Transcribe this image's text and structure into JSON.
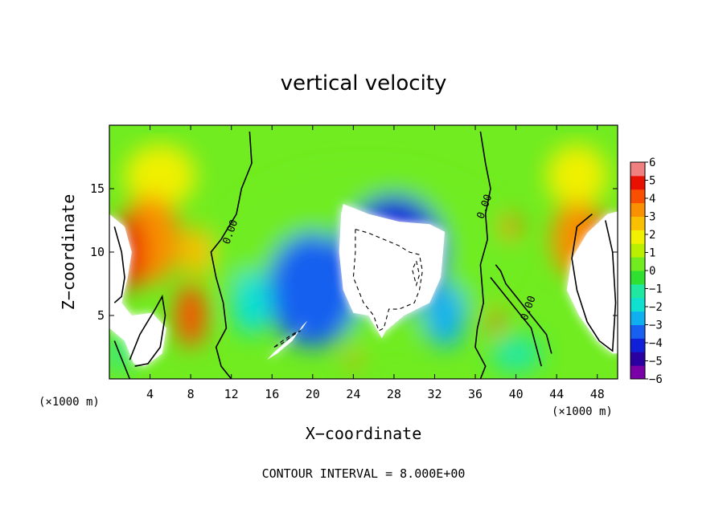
{
  "chart_data": {
    "type": "heatmap",
    "title": "vertical velocity",
    "xlabel": "X−coordinate",
    "ylabel": "Z−coordinate",
    "x_units": "(×1000 m)",
    "y_units": "(×1000 m)",
    "xlim": [
      0,
      50
    ],
    "ylim": [
      0,
      20
    ],
    "x_ticks": [
      "4",
      "8",
      "12",
      "16",
      "20",
      "24",
      "28",
      "32",
      "36",
      "40",
      "44",
      "48"
    ],
    "y_ticks": [
      "5",
      "10",
      "15"
    ],
    "contour_label": "0.00",
    "footer": "CONTOUR INTERVAL = 8.000E+00",
    "colorbar": {
      "range": [
        -6,
        6
      ],
      "labels": [
        "6",
        "5",
        "4",
        "3",
        "2",
        "1",
        "0",
        "−1",
        "−2",
        "−3",
        "−4",
        "−5",
        "−6"
      ],
      "colors": [
        "#7a00a8",
        "#2a00a0",
        "#1020d8",
        "#1860f0",
        "#10b0f0",
        "#10e0d0",
        "#20e8a0",
        "#30e030",
        "#70ec20",
        "#b8f000",
        "#f0f000",
        "#f8c000",
        "#f89000",
        "#f85000",
        "#e81000",
        "#f08080"
      ]
    },
    "blobs": [
      {
        "v": 0.3,
        "x": 25,
        "y": 10,
        "rx": 30,
        "ry": 14
      },
      {
        "v": 1.6,
        "x": 5,
        "y": 16,
        "rx": 7,
        "ry": 5
      },
      {
        "v": 1.6,
        "x": 46,
        "y": 16,
        "rx": 6,
        "ry": 5
      },
      {
        "v": 3.0,
        "x": 4,
        "y": 11,
        "rx": 6,
        "ry": 7
      },
      {
        "v": 3.2,
        "x": 46,
        "y": 11,
        "rx": 5,
        "ry": 6
      },
      {
        "v": 4.0,
        "x": 8,
        "y": 5,
        "rx": 3,
        "ry": 5
      },
      {
        "v": 2.5,
        "x": 8.5,
        "y": 10,
        "rx": 3,
        "ry": 4
      },
      {
        "v": 4.5,
        "x": 2,
        "y": 10,
        "rx": 3,
        "ry": 6
      },
      {
        "v": 4.5,
        "x": 48.5,
        "y": 10,
        "rx": 2.5,
        "ry": 6
      },
      {
        "v": 4.0,
        "x": 39.5,
        "y": 12,
        "rx": 1.4,
        "ry": 2
      },
      {
        "v": 4.0,
        "x": 38,
        "y": 4.5,
        "rx": 1,
        "ry": 2.5
      },
      {
        "v": 3.5,
        "x": 24,
        "y": 1.5,
        "rx": 1,
        "ry": 1.5
      },
      {
        "v": -3.5,
        "x": 20,
        "y": 7,
        "rx": 9,
        "ry": 9
      },
      {
        "v": -4.5,
        "x": 28,
        "y": 10,
        "rx": 10,
        "ry": 9
      },
      {
        "v": -2.0,
        "x": 14,
        "y": 6,
        "rx": 4,
        "ry": 5
      },
      {
        "v": -2.5,
        "x": 33,
        "y": 5,
        "rx": 4,
        "ry": 5
      },
      {
        "v": -1.2,
        "x": 40,
        "y": 2,
        "rx": 5,
        "ry": 3
      },
      {
        "v": -1.0,
        "x": 1,
        "y": 2,
        "rx": 2,
        "ry": 3
      }
    ],
    "white_regions": [
      {
        "pts": [
          [
            23,
            13.8
          ],
          [
            25.5,
            13
          ],
          [
            28.5,
            12.4
          ],
          [
            31.5,
            12.2
          ],
          [
            33,
            11.6
          ],
          [
            32.6,
            8
          ],
          [
            31.5,
            6
          ],
          [
            29,
            5
          ],
          [
            27.2,
            3.8
          ],
          [
            26.8,
            3.2
          ],
          [
            25.5,
            5
          ],
          [
            24,
            5.2
          ],
          [
            23,
            7
          ],
          [
            22.6,
            10
          ],
          [
            22.8,
            13
          ]
        ]
      },
      {
        "pts": [
          [
            0,
            13
          ],
          [
            1.5,
            12
          ],
          [
            2.2,
            10
          ],
          [
            1.8,
            8
          ],
          [
            1.2,
            6
          ],
          [
            2.2,
            5
          ],
          [
            4.2,
            5.2
          ],
          [
            5.6,
            4
          ],
          [
            5.2,
            2
          ],
          [
            3.5,
            1
          ],
          [
            2.4,
            1.2
          ],
          [
            1.5,
            3
          ],
          [
            0,
            4
          ]
        ]
      },
      {
        "pts": [
          [
            50,
            13.2
          ],
          [
            49,
            13
          ],
          [
            47,
            11.5
          ],
          [
            45.5,
            9.5
          ],
          [
            45,
            7
          ],
          [
            46.2,
            5
          ],
          [
            48,
            3
          ],
          [
            49.5,
            2
          ],
          [
            50,
            2
          ]
        ]
      },
      {
        "pts": [
          [
            15.5,
            1.5
          ],
          [
            16.5,
            2
          ],
          [
            18,
            3
          ],
          [
            19,
            4.2
          ],
          [
            19.5,
            4.6
          ],
          [
            19,
            4
          ],
          [
            17.5,
            3
          ],
          [
            16.2,
            2.1
          ]
        ]
      }
    ],
    "solid_contours": [
      {
        "pts": [
          [
            13.8,
            19.5
          ],
          [
            14,
            17
          ],
          [
            13,
            15
          ],
          [
            12.5,
            13
          ],
          [
            11,
            11
          ],
          [
            10,
            10
          ],
          [
            10.5,
            8
          ],
          [
            11.2,
            6
          ],
          [
            11.5,
            4
          ],
          [
            10.5,
            2.5
          ],
          [
            11,
            1
          ],
          [
            12,
            0
          ]
        ]
      },
      {
        "pts": [
          [
            36.5,
            19.5
          ],
          [
            37,
            17
          ],
          [
            37.5,
            15
          ],
          [
            37,
            13
          ],
          [
            37.2,
            11
          ],
          [
            36.5,
            9
          ],
          [
            36.8,
            6
          ],
          [
            36.2,
            4
          ],
          [
            36,
            2.5
          ],
          [
            37,
            1
          ],
          [
            36.5,
            0
          ]
        ]
      },
      {
        "pts": [
          [
            2,
            1.5
          ],
          [
            3,
            3.5
          ],
          [
            4.5,
            5.5
          ],
          [
            5.2,
            6.5
          ],
          [
            5.5,
            5
          ],
          [
            5,
            2.5
          ],
          [
            3.8,
            1.2
          ],
          [
            2.5,
            1
          ]
        ]
      },
      {
        "pts": [
          [
            47.5,
            13
          ],
          [
            46,
            12
          ],
          [
            45.5,
            9.5
          ],
          [
            46,
            7
          ],
          [
            47,
            4.5
          ],
          [
            48.2,
            3
          ],
          [
            49.5,
            2.2
          ],
          [
            49.8,
            6
          ],
          [
            49.5,
            10
          ],
          [
            48.8,
            12.5
          ]
        ]
      },
      {
        "pts": [
          [
            0.5,
            12
          ],
          [
            1.2,
            10
          ],
          [
            1.5,
            8
          ],
          [
            1.2,
            6.5
          ],
          [
            0.5,
            6
          ]
        ]
      },
      {
        "pts": [
          [
            37.5,
            8
          ],
          [
            38.5,
            7
          ],
          [
            39.5,
            6
          ],
          [
            40.5,
            5
          ],
          [
            41.5,
            4
          ],
          [
            42,
            2.5
          ],
          [
            42.5,
            1
          ]
        ]
      },
      {
        "pts": [
          [
            38,
            9
          ],
          [
            38.5,
            8.5
          ],
          [
            39,
            7.5
          ],
          [
            40,
            6.5
          ],
          [
            41,
            5.5
          ],
          [
            42,
            4.5
          ],
          [
            43,
            3.5
          ],
          [
            43.5,
            2
          ]
        ]
      },
      {
        "pts": [
          [
            0.5,
            3
          ],
          [
            1,
            2
          ],
          [
            1.5,
            1
          ],
          [
            2,
            0
          ]
        ]
      }
    ],
    "dashed_contours": [
      {
        "pts": [
          [
            24.2,
            11.8
          ],
          [
            25.5,
            11.5
          ],
          [
            27,
            11
          ],
          [
            28.5,
            10.5
          ],
          [
            29.5,
            10
          ],
          [
            30.5,
            9.8
          ],
          [
            30.8,
            8.5
          ],
          [
            30.5,
            7
          ],
          [
            30,
            6
          ],
          [
            28.5,
            5.5
          ],
          [
            27.5,
            5.5
          ],
          [
            27,
            4
          ],
          [
            26.5,
            3.8
          ],
          [
            26,
            5
          ],
          [
            25.5,
            5.5
          ],
          [
            25,
            6
          ],
          [
            24.5,
            7
          ],
          [
            24,
            8
          ],
          [
            24.2,
            10
          ]
        ]
      },
      {
        "pts": [
          [
            16.2,
            2.5
          ],
          [
            17,
            2.8
          ],
          [
            18,
            3.4
          ],
          [
            18.8,
            3.8
          ],
          [
            18.2,
            3.6
          ],
          [
            17.2,
            3.1
          ]
        ]
      },
      {
        "pts": [
          [
            30.2,
            9.3
          ],
          [
            30.5,
            8.2
          ],
          [
            30.2,
            7.4
          ],
          [
            29.8,
            8.6
          ]
        ]
      }
    ],
    "contour_label_points": [
      [
        12.2,
        11.5
      ],
      [
        37.2,
        13.5
      ],
      [
        41.5,
        5.5
      ]
    ]
  }
}
